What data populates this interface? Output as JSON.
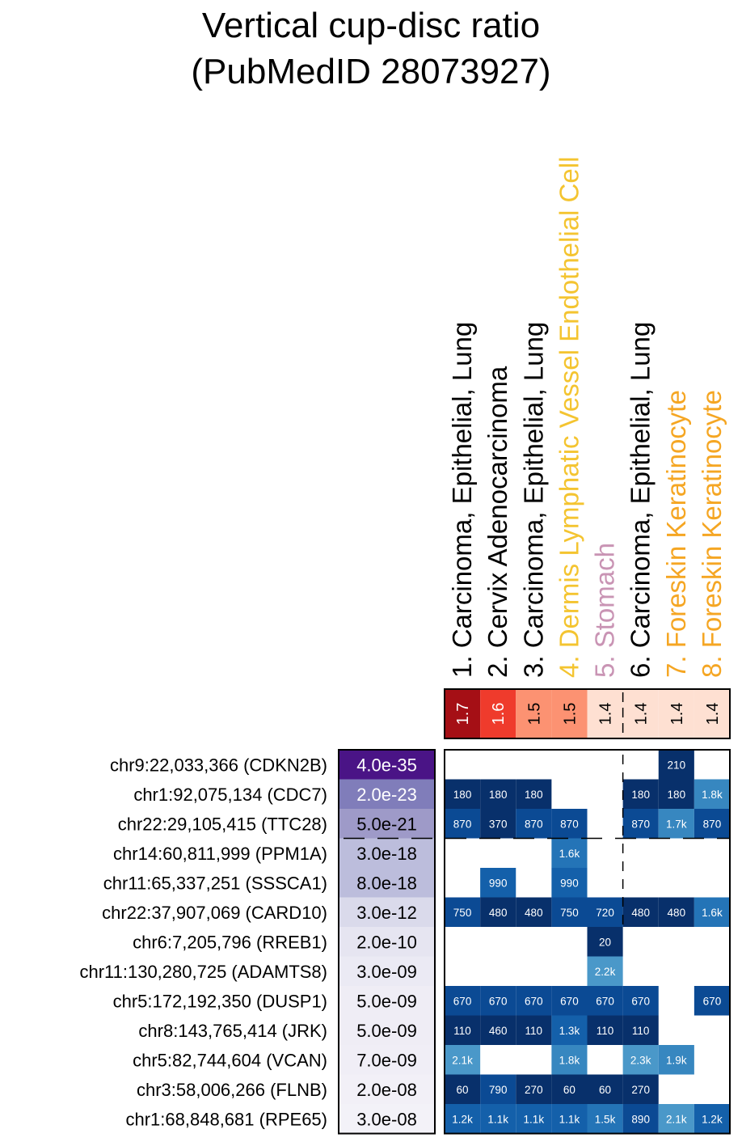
{
  "chart_data": {
    "type": "heatmap",
    "title": "Vertical cup-disc ratio",
    "subtitle": "(PubMedID 28073927)",
    "columns": [
      {
        "label": "1. Carcinoma, Epithelial, Lung",
        "color": "#000000",
        "enrichment": "1.7",
        "enrichment_color": "#a50f15"
      },
      {
        "label": "2. Cervix Adenocarcinoma",
        "color": "#000000",
        "enrichment": "1.6",
        "enrichment_color": "#ef3b2c"
      },
      {
        "label": "3. Carcinoma, Epithelial, Lung",
        "color": "#000000",
        "enrichment": "1.5",
        "enrichment_color": "#fc9272"
      },
      {
        "label": "4. Dermis Lymphatic Vessel Endothelial Cell",
        "color": "#f4c430",
        "enrichment": "1.5",
        "enrichment_color": "#fc9272"
      },
      {
        "label": "5. Stomach",
        "color": "#c994b4",
        "enrichment": "1.4",
        "enrichment_color": "#fee0d2"
      },
      {
        "label": "6. Carcinoma, Epithelial, Lung",
        "color": "#000000",
        "enrichment": "1.4",
        "enrichment_color": "#fee0d2"
      },
      {
        "label": "7. Foreskin Keratinocyte",
        "color": "#f5a623",
        "enrichment": "1.4",
        "enrichment_color": "#fee0d2"
      },
      {
        "label": "8. Foreskin Keratinocyte",
        "color": "#f5a623",
        "enrichment": "1.4",
        "enrichment_color": "#fee0d2"
      }
    ],
    "rows": [
      {
        "snp": "chr9:22,033,366 (CDKN2B)",
        "pvalue": "4.0e-35",
        "p_color": "#4a1486",
        "p_text_color": "#ffffff",
        "cells": [
          null,
          null,
          null,
          null,
          null,
          null,
          "210",
          null
        ]
      },
      {
        "snp": "chr1:92,075,134 (CDC7)",
        "pvalue": "2.0e-23",
        "p_color": "#807dba",
        "p_text_color": "#ffffff",
        "cells": [
          "180",
          "180",
          "180",
          null,
          null,
          "180",
          "180",
          "1.8k"
        ]
      },
      {
        "snp": "chr22:29,105,415 (TTC28)",
        "pvalue": "5.0e-21",
        "p_color": "#9e9ac8",
        "p_text_color": "#000000",
        "cells": [
          "870",
          "370",
          "870",
          "870",
          null,
          "870",
          "1.7k",
          "870"
        ]
      },
      {
        "snp": "chr14:60,811,999 (PPM1A)",
        "pvalue": "3.0e-18",
        "p_color": "#bcbddc",
        "p_text_color": "#000000",
        "cells": [
          null,
          null,
          null,
          "1.6k",
          null,
          null,
          null,
          null
        ]
      },
      {
        "snp": "chr11:65,337,251 (SSSCA1)",
        "pvalue": "8.0e-18",
        "p_color": "#bcbddc",
        "p_text_color": "#000000",
        "cells": [
          null,
          "990",
          null,
          "990",
          null,
          null,
          null,
          null
        ]
      },
      {
        "snp": "chr22:37,907,069 (CARD10)",
        "pvalue": "3.0e-12",
        "p_color": "#dadaeb",
        "p_text_color": "#000000",
        "cells": [
          "750",
          "480",
          "480",
          "750",
          "720",
          "480",
          "480",
          "1.6k"
        ]
      },
      {
        "snp": "chr6:7,205,796 (RREB1)",
        "pvalue": "2.0e-10",
        "p_color": "#e6e5f1",
        "p_text_color": "#000000",
        "cells": [
          null,
          null,
          null,
          null,
          "20",
          null,
          null,
          null
        ]
      },
      {
        "snp": "chr11:130,280,725 (ADAMTS8)",
        "pvalue": "3.0e-09",
        "p_color": "#ebeaf4",
        "p_text_color": "#000000",
        "cells": [
          null,
          null,
          null,
          null,
          "2.2k",
          null,
          null,
          null
        ]
      },
      {
        "snp": "chr5:172,192,350 (DUSP1)",
        "pvalue": "5.0e-09",
        "p_color": "#efedf5",
        "p_text_color": "#000000",
        "cells": [
          "670",
          "670",
          "670",
          "670",
          "670",
          "670",
          null,
          "670"
        ]
      },
      {
        "snp": "chr8:143,765,414 (JRK)",
        "pvalue": "5.0e-09",
        "p_color": "#efedf5",
        "p_text_color": "#000000",
        "cells": [
          "110",
          "460",
          "110",
          "1.3k",
          "110",
          "110",
          null,
          null
        ]
      },
      {
        "snp": "chr5:82,744,604 (VCAN)",
        "pvalue": "7.0e-09",
        "p_color": "#f0eef6",
        "p_text_color": "#000000",
        "cells": [
          "2.1k",
          null,
          null,
          "1.8k",
          null,
          "2.3k",
          "1.9k",
          null
        ]
      },
      {
        "snp": "chr3:58,006,266 (FLNB)",
        "pvalue": "2.0e-08",
        "p_color": "#f2f0f7",
        "p_text_color": "#000000",
        "cells": [
          "60",
          "790",
          "270",
          "60",
          "60",
          "270",
          null,
          null
        ]
      },
      {
        "snp": "chr1:68,848,681 (RPE65)",
        "pvalue": "3.0e-08",
        "p_color": "#f3f2f8",
        "p_text_color": "#000000",
        "cells": [
          "1.2k",
          "1.1k",
          "1.1k",
          "1.1k",
          "1.5k",
          "890",
          "2.1k",
          "1.2k"
        ]
      }
    ]
  }
}
